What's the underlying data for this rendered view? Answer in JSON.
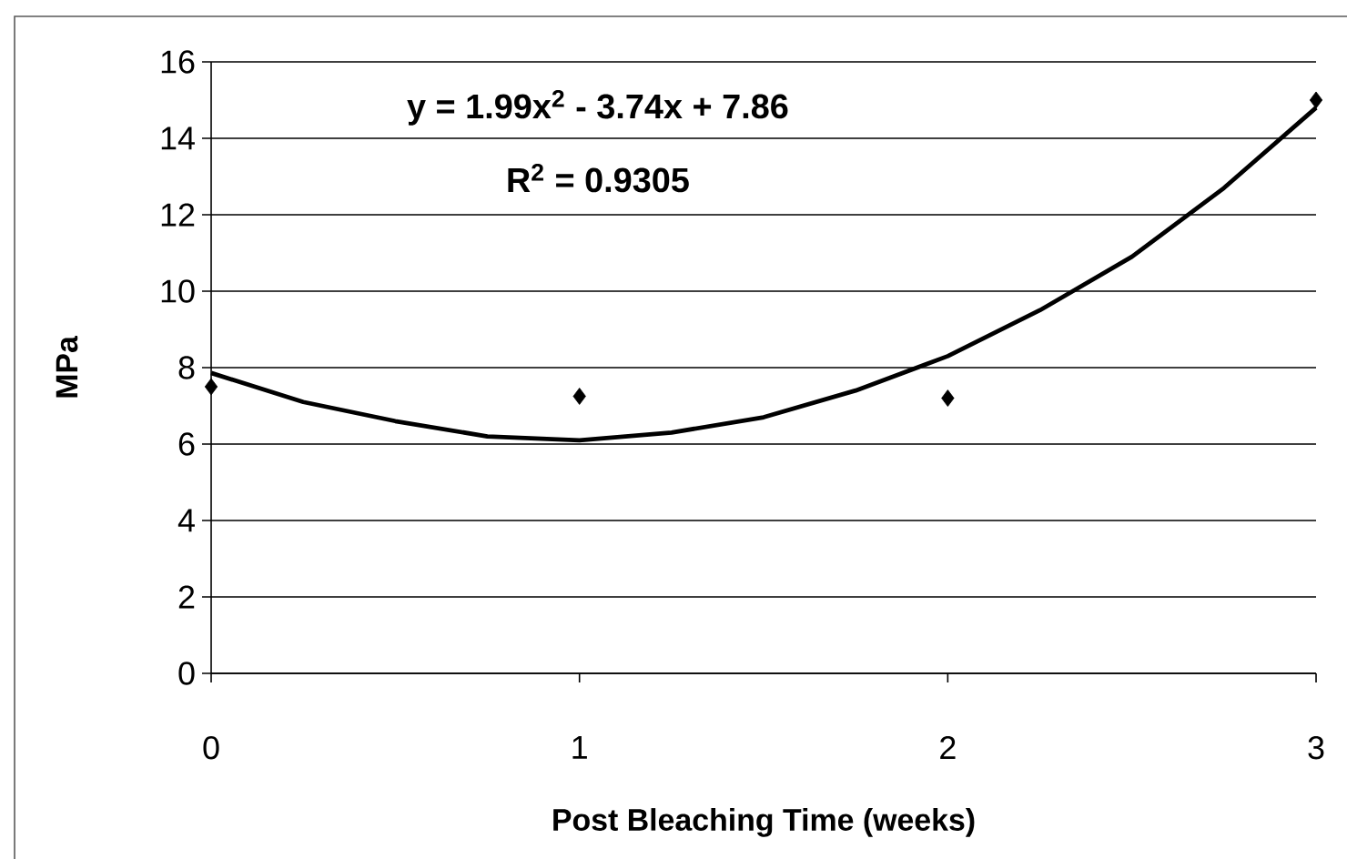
{
  "chart_data": {
    "type": "scatter",
    "xlabel": "Post Bleaching Time (weeks)",
    "ylabel": "MPa",
    "annotations": [
      "y = 1.99x$^{2}$ - 3.74x + 7.86",
      "R$^{2}$ = 0.9305"
    ],
    "x": [
      0,
      1,
      2,
      3
    ],
    "series": [
      {
        "color": "#000000",
        "marker": "diamond",
        "values": [
          7.5,
          7.25,
          7.2,
          15.0
        ]
      },
      {
        "type": "line",
        "color": "#000000",
        "marker": "none",
        "x": [
          0,
          0.25,
          0.5,
          0.75,
          1,
          1.25,
          1.5,
          1.75,
          2,
          2.25,
          2.5,
          2.75,
          3
        ],
        "values": [
          7.86,
          7.1,
          6.6,
          6.2,
          6.1,
          6.3,
          6.7,
          7.4,
          8.3,
          9.5,
          10.9,
          12.7,
          14.8
        ]
      }
    ],
    "xlim": [
      0,
      3
    ],
    "xticks": [
      0,
      1,
      2,
      3
    ],
    "ylim": [
      0,
      16
    ],
    "yticks": [
      0,
      2,
      4,
      6,
      8,
      10,
      12,
      14,
      16
    ],
    "grid": "y"
  }
}
